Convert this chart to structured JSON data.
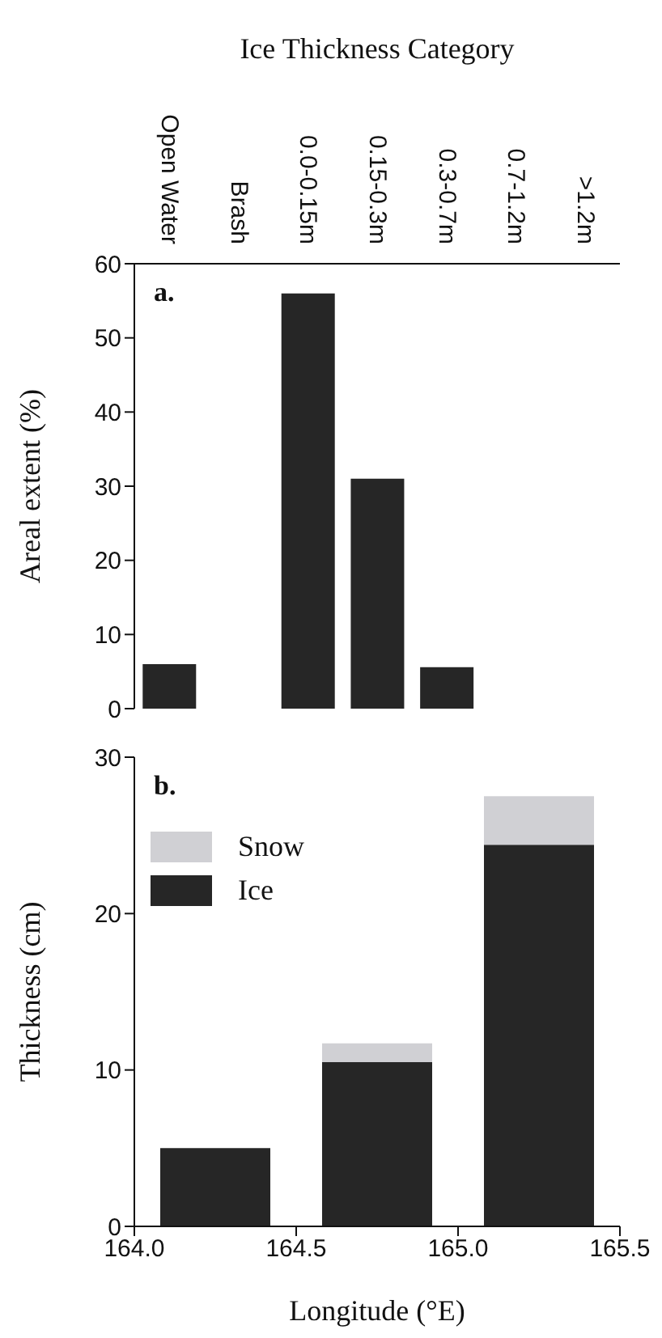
{
  "chart_data": [
    {
      "type": "bar",
      "xlabel": "Ice Thickness Category",
      "ylabel": "Areal extent (%)",
      "categories": [
        "Open Water",
        "Brash",
        "0.0-0.15m",
        "0.15-0.3m",
        "0.3-0.7m",
        "0.7-1.2m",
        ">1.2m"
      ],
      "values": [
        6,
        0,
        56,
        31,
        5.6,
        0,
        0
      ],
      "color": "#262626",
      "ylim": [
        0,
        60
      ],
      "yticks": [
        0,
        10,
        20,
        30,
        40,
        50,
        60
      ],
      "grid": false,
      "annotations": [
        "a."
      ]
    },
    {
      "type": "bar",
      "stacked": true,
      "xlabel": "Longitude (°E)",
      "ylabel": "Thickness (cm)",
      "x": [
        164.25,
        164.75,
        165.25
      ],
      "series": [
        {
          "name": "Ice",
          "color": "#262626",
          "values": [
            5,
            10.5,
            24.4
          ]
        },
        {
          "name": "Snow",
          "color": "#d0d0d4",
          "values": [
            0,
            1.2,
            3.1
          ]
        }
      ],
      "xlim": [
        164.0,
        165.5
      ],
      "xticks": [
        {
          "value": 164.0,
          "label": "164.0"
        },
        {
          "value": 164.5,
          "label": "164.5"
        },
        {
          "value": 165.0,
          "label": "165.0"
        },
        {
          "value": 165.5,
          "label": "165.5"
        }
      ],
      "ylim": [
        0,
        30
      ],
      "yticks": [
        0,
        10,
        20,
        30
      ],
      "grid": false,
      "legend": "top left",
      "annotations": [
        "b."
      ]
    }
  ]
}
